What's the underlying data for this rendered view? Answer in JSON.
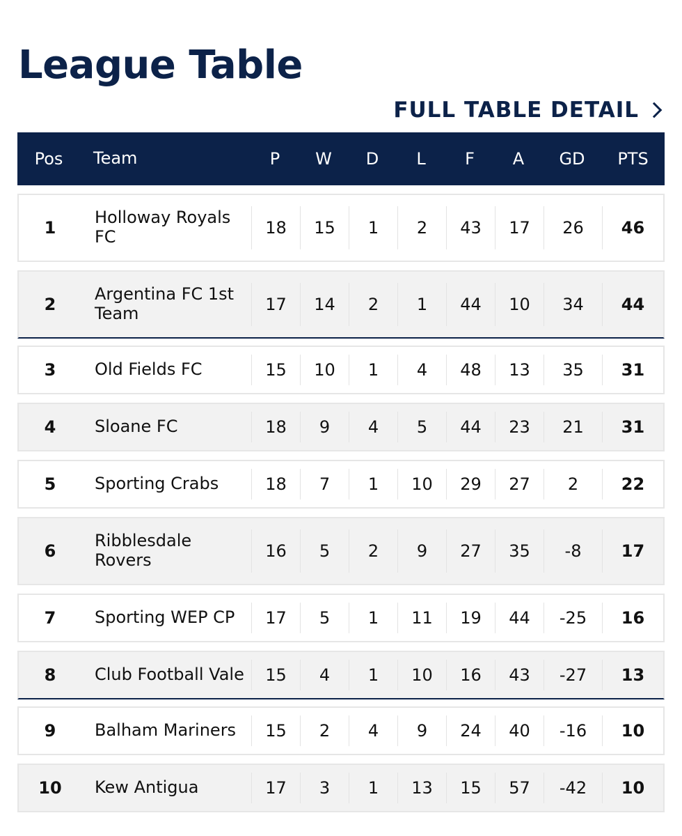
{
  "page_title": "League Table",
  "full_link_label": "FULL TABLE DETAIL",
  "headers": {
    "pos": "Pos",
    "team": "Team",
    "p": "P",
    "w": "W",
    "d": "D",
    "l": "L",
    "f": "F",
    "a": "A",
    "gd": "GD",
    "pts": "PTS"
  },
  "rows": [
    {
      "pos": "1",
      "team": "Holloway Royals FC",
      "p": "18",
      "w": "15",
      "d": "1",
      "l": "2",
      "f": "43",
      "a": "17",
      "gd": "26",
      "pts": "46"
    },
    {
      "pos": "2",
      "team": "Argentina FC 1st Team",
      "p": "17",
      "w": "14",
      "d": "2",
      "l": "1",
      "f": "44",
      "a": "10",
      "gd": "34",
      "pts": "44"
    },
    {
      "pos": "3",
      "team": "Old Fields FC",
      "p": "15",
      "w": "10",
      "d": "1",
      "l": "4",
      "f": "48",
      "a": "13",
      "gd": "35",
      "pts": "31"
    },
    {
      "pos": "4",
      "team": "Sloane FC",
      "p": "18",
      "w": "9",
      "d": "4",
      "l": "5",
      "f": "44",
      "a": "23",
      "gd": "21",
      "pts": "31"
    },
    {
      "pos": "5",
      "team": "Sporting Crabs",
      "p": "18",
      "w": "7",
      "d": "1",
      "l": "10",
      "f": "29",
      "a": "27",
      "gd": "2",
      "pts": "22"
    },
    {
      "pos": "6",
      "team": "Ribblesdale Rovers",
      "p": "16",
      "w": "5",
      "d": "2",
      "l": "9",
      "f": "27",
      "a": "35",
      "gd": "-8",
      "pts": "17"
    },
    {
      "pos": "7",
      "team": "Sporting WEP CP",
      "p": "17",
      "w": "5",
      "d": "1",
      "l": "11",
      "f": "19",
      "a": "44",
      "gd": "-25",
      "pts": "16"
    },
    {
      "pos": "8",
      "team": "Club Football Vale",
      "p": "15",
      "w": "4",
      "d": "1",
      "l": "10",
      "f": "16",
      "a": "43",
      "gd": "-27",
      "pts": "13"
    },
    {
      "pos": "9",
      "team": "Balham Mariners",
      "p": "15",
      "w": "2",
      "d": "4",
      "l": "9",
      "f": "24",
      "a": "40",
      "gd": "-16",
      "pts": "10"
    },
    {
      "pos": "10",
      "team": "Kew Antigua",
      "p": "17",
      "w": "3",
      "d": "1",
      "l": "13",
      "f": "15",
      "a": "57",
      "gd": "-42",
      "pts": "10"
    }
  ]
}
